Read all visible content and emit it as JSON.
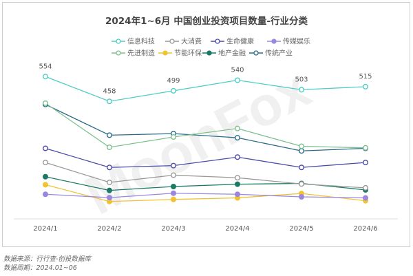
{
  "chart_data": {
    "type": "line",
    "title": "2024年1~6月 中国创业投资项目数量-行业分类",
    "categories": [
      "2024/1",
      "2024/2",
      "2024/3",
      "2024/4",
      "2024/5",
      "2024/6"
    ],
    "ylim": [
      0,
      850
    ],
    "grid": false,
    "legend_position": "top",
    "series": [
      {
        "name": "信息科技",
        "color": "#4fcdc4",
        "filled": false,
        "values": [
          554,
          458,
          499,
          540,
          503,
          515
        ],
        "labels": [
          "554",
          "458",
          "499",
          "540",
          "503",
          "515"
        ]
      },
      {
        "name": "大消费",
        "color": "#999999",
        "filled": false,
        "values": [
          221,
          144,
          172,
          162,
          138,
          123
        ]
      },
      {
        "name": "生命健康",
        "color": "#4b4aa8",
        "filled": false,
        "values": [
          276,
          202,
          209,
          242,
          202,
          221
        ]
      },
      {
        "name": "传媒娱乐",
        "color": "#9a87e0",
        "filled": true,
        "values": [
          98,
          85,
          102,
          98,
          88,
          84
        ]
      },
      {
        "name": "先进制造",
        "color": "#7cc08e",
        "filled": false,
        "values": [
          451,
          280,
          320,
          353,
          284,
          278
        ]
      },
      {
        "name": "节能环保",
        "color": "#f2c230",
        "filled": true,
        "values": [
          135,
          70,
          78,
          84,
          101,
          73
        ]
      },
      {
        "name": "地产金融",
        "color": "#1a7a64",
        "filled": true,
        "values": [
          166,
          113,
          128,
          137,
          140,
          115
        ]
      },
      {
        "name": "传统产业",
        "color": "#2a6b8a",
        "filled": false,
        "values": [
          446,
          327,
          333,
          317,
          266,
          276
        ]
      }
    ]
  },
  "footer": {
    "source": "数据来源：行行查-创投数据库",
    "period": "数据周期：2024.01~06"
  },
  "watermark": "MoonFox"
}
